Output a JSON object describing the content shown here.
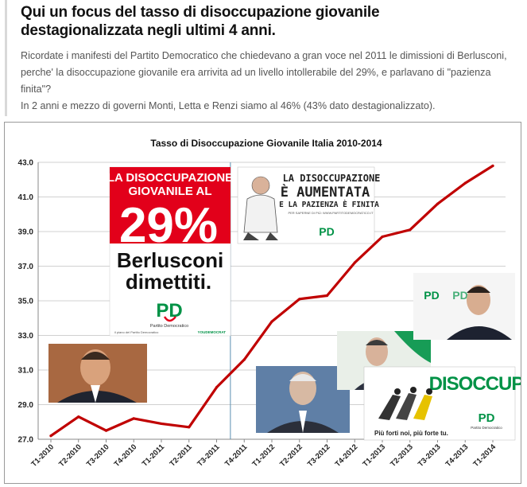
{
  "article": {
    "headline_line1": "Qui un focus del tasso di disoccupazione giovanile",
    "headline_line2": "destagionalizzata negli ultimi 4 anni.",
    "paragraph1": "Ricordate i manifesti del Partito Democratico che chiedevano a gran voce nel 2011 le dimissioni di Berlusconi, perche' la disoccupazione giovanile era arrivita ad un livello intollerabile del 29%, e parlavano di \"pazienza finita\"?",
    "paragraph2": "In 2 anni e mezzo di governi Monti, Letta e Renzi siamo al 46% (43% dato destagionalizzato)."
  },
  "posters": {
    "poster_left": {
      "line1": "LA DISOCCUPAZIONE",
      "line2": "GIOVANILE AL",
      "big": "29%",
      "slogan1": "Berlusconi",
      "slogan2": "dimettiti.",
      "party": "PD",
      "party_sub": "Partito Democratico",
      "footer_left": "il piano del Partito Democratico",
      "footer_right": "YOUDEMOCRAT"
    },
    "poster_right": {
      "line1": "LA DISOCCUPAZIONE",
      "line2": "È AUMENTATA",
      "line3": "E LA PAZIENZA È FINITA",
      "small": "PER SAPERNE DI PIÙ: WWW.PARTITODEMOCRATICO.IT",
      "party": "PD"
    },
    "poster_bottom": {
      "word": "DISOCCUP",
      "slogan": "Più forti noi, più forte tu.",
      "party": "PD",
      "party_sub": "Partito Democratico"
    },
    "renzi_backdrop": {
      "party": "PD"
    }
  },
  "colors": {
    "line": "#c00000",
    "pd_red": "#e2001a",
    "pd_green": "#009246",
    "grid": "#d0d0d0",
    "divider": "#5b8fb0"
  },
  "chart_data": {
    "type": "line",
    "title": "Tasso di Disoccupazione Giovanile Italia 2010-2014",
    "categories": [
      "T1-2010",
      "T2-2010",
      "T3-2010",
      "T4-2010",
      "T1-2011",
      "T2-2011",
      "T3-2011",
      "T4-2011",
      "T1-2012",
      "T2-2012",
      "T3-2012",
      "T4-2012",
      "T1-2013",
      "T2-2013",
      "T3-2013",
      "T4-2013",
      "T1-2014"
    ],
    "series": [
      {
        "values": [
          27.2,
          28.3,
          27.5,
          28.2,
          27.9,
          27.7,
          30.0,
          31.6,
          33.8,
          35.1,
          35.3,
          37.2,
          38.7,
          39.1,
          40.6,
          41.8,
          42.8
        ]
      }
    ],
    "yticks": [
      "27.0",
      "29.0",
      "31.0",
      "33.0",
      "35.0",
      "37.0",
      "39.0",
      "41.0",
      "43.0"
    ],
    "ylim": [
      27,
      43
    ],
    "grid": true,
    "legend": "none",
    "xlabel": "",
    "ylabel": ""
  }
}
